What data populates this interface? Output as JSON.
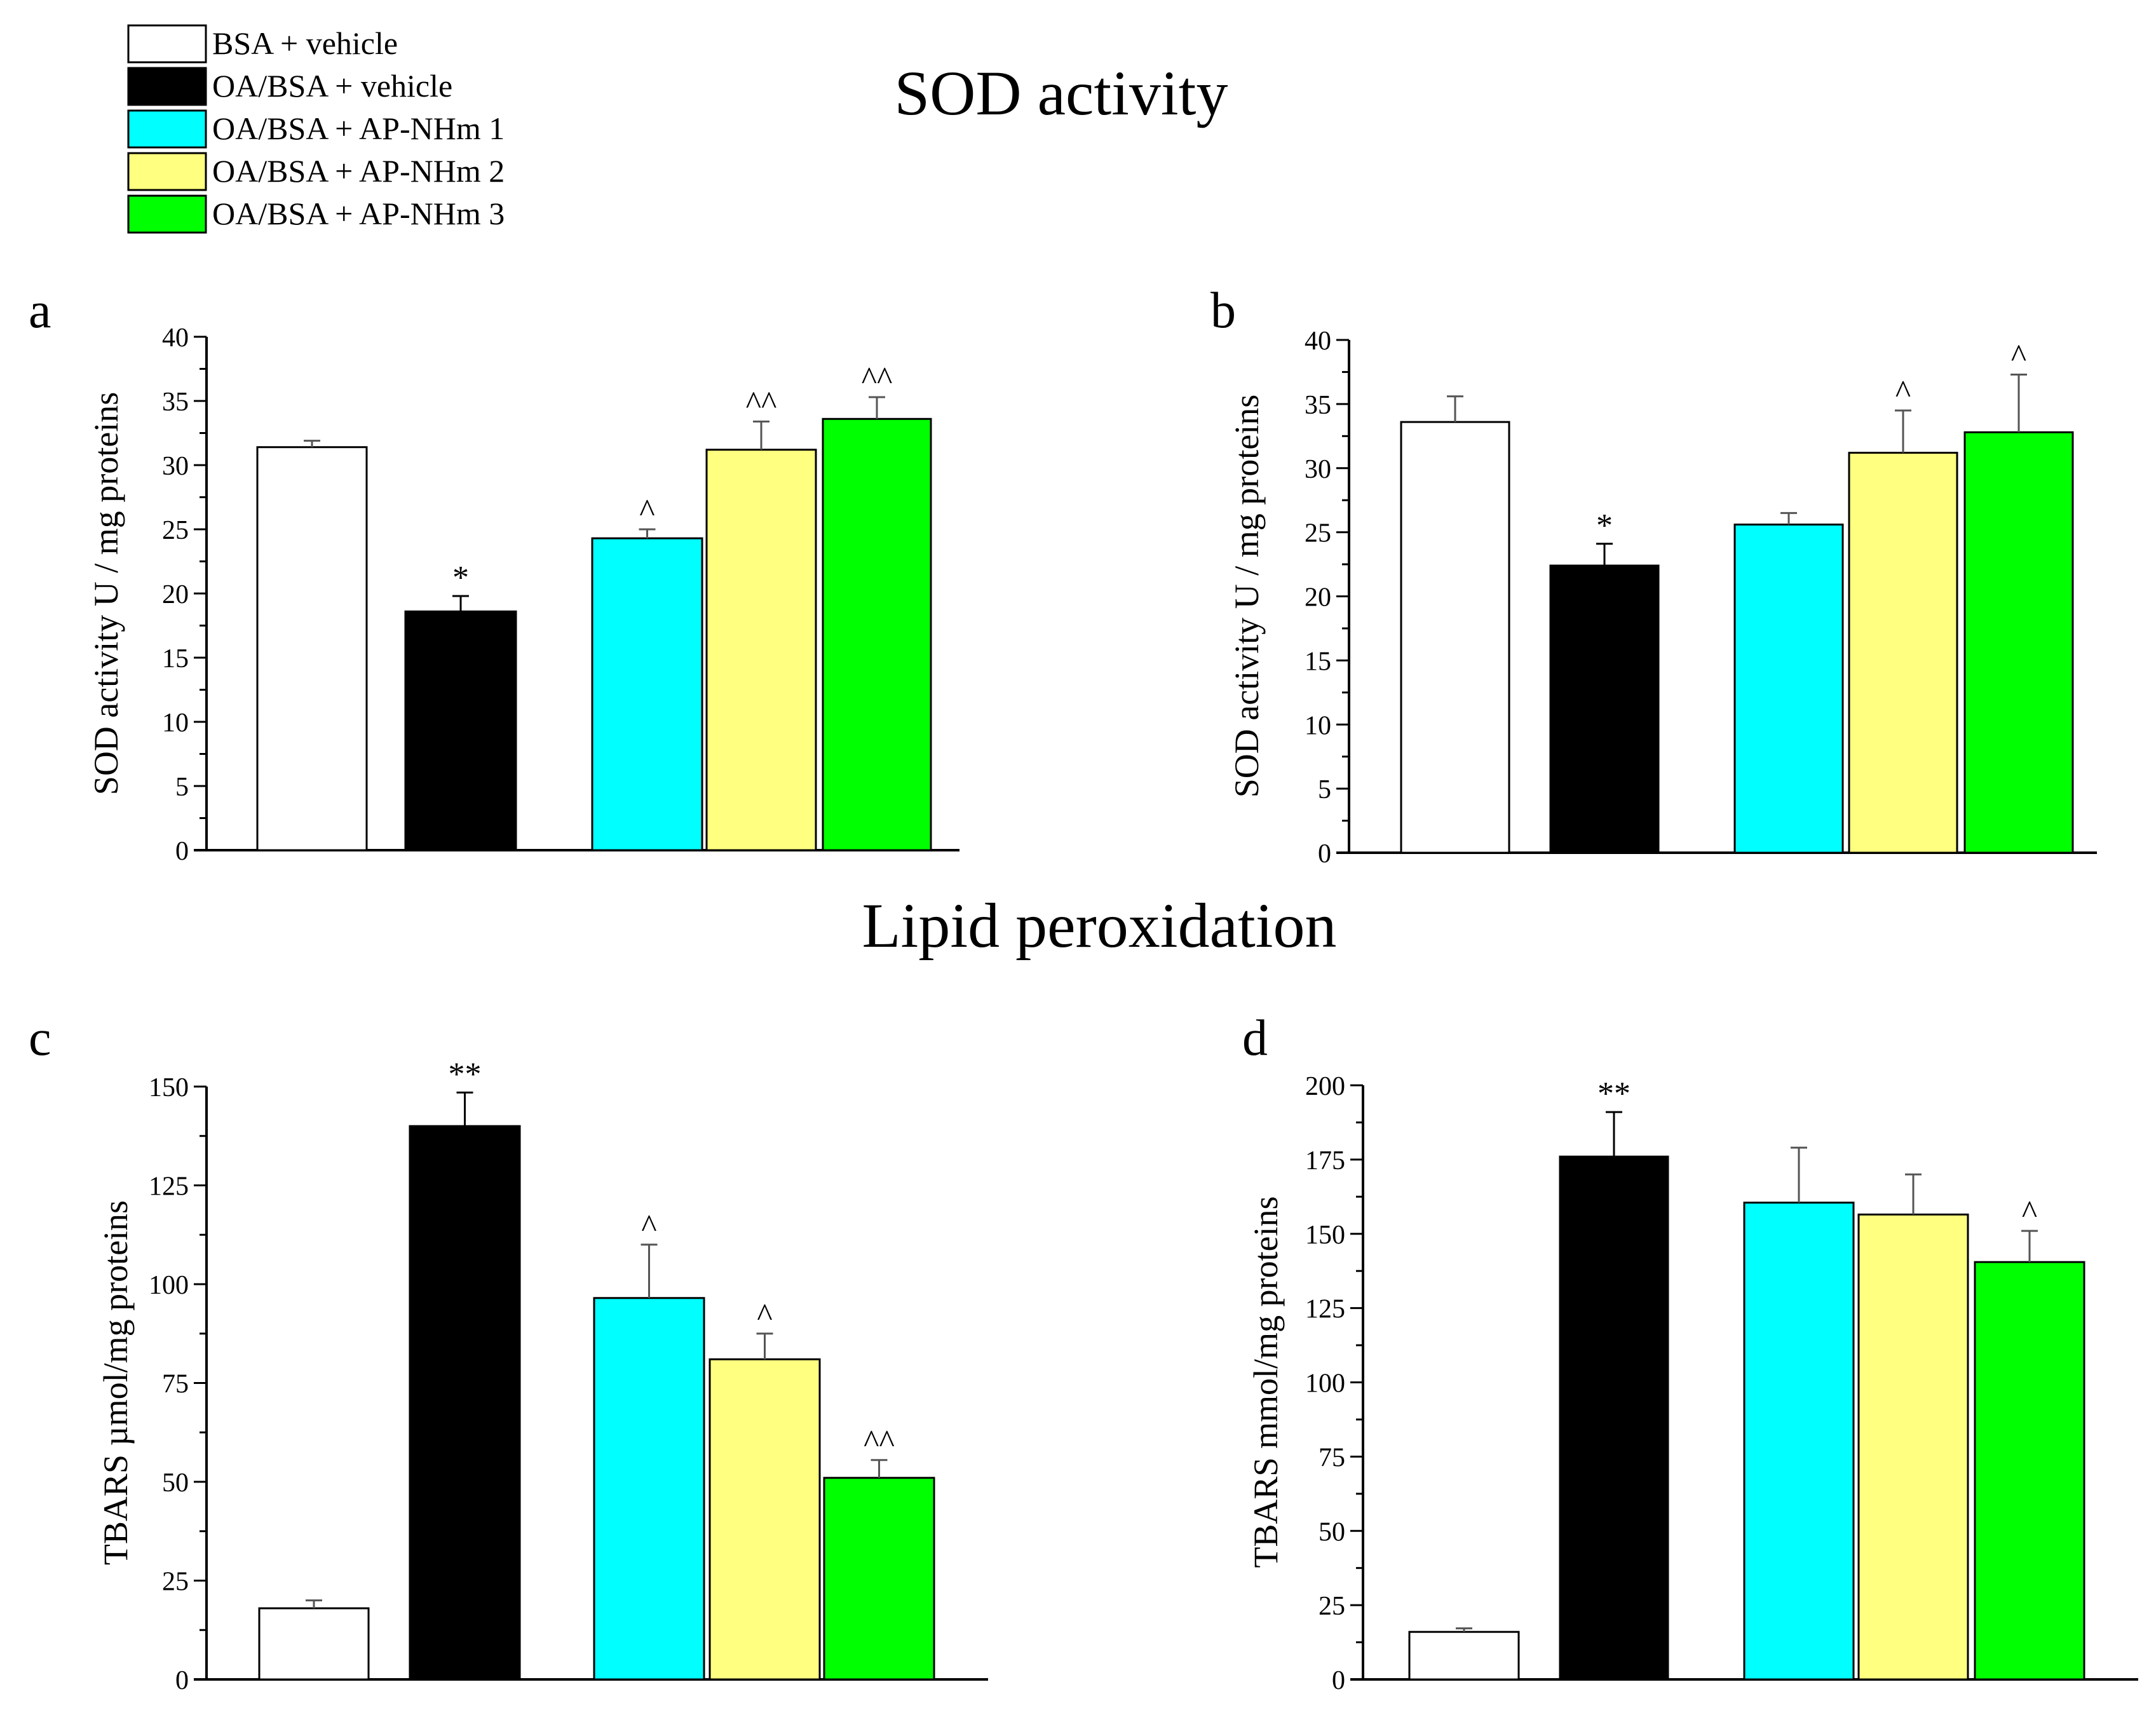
{
  "figure": {
    "section_titles": [
      "SOD activity",
      "Lipid peroxidation"
    ]
  },
  "legend": {
    "items": [
      {
        "label": "BSA + vehicle",
        "color": "#ffffff"
      },
      {
        "label": "OA/BSA + vehicle",
        "color": "#000000"
      },
      {
        "label": "OA/BSA + AP-NHm 1",
        "color": "#00ffff"
      },
      {
        "label": "OA/BSA + AP-NHm 2",
        "color": "#ffff80"
      },
      {
        "label": "OA/BSA + AP-NHm 3",
        "color": "#00ff00"
      }
    ]
  },
  "chart_data": [
    {
      "panel": "a",
      "type": "bar",
      "ylabel": "SOD activity U / mg proteins",
      "ylim": [
        0,
        40
      ],
      "yticks": [
        0,
        5,
        10,
        15,
        20,
        25,
        30,
        35,
        40
      ],
      "categories": [
        "BSA + vehicle",
        "OA/BSA + vehicle",
        "OA/BSA + AP-NHm 1",
        "OA/BSA + AP-NHm 2",
        "OA/BSA + AP-NHm 3"
      ],
      "values": [
        31.4,
        18.6,
        24.3,
        31.2,
        33.6
      ],
      "errors": [
        0.5,
        1.2,
        0.7,
        2.2,
        1.7
      ],
      "annotations": [
        "",
        "*",
        "^",
        "^^",
        "^^"
      ],
      "colors": [
        "#ffffff",
        "#000000",
        "#00ffff",
        "#ffff80",
        "#00ff00"
      ]
    },
    {
      "panel": "b",
      "type": "bar",
      "ylabel": "SOD activity U / mg proteins",
      "ylim": [
        0,
        40
      ],
      "yticks": [
        0,
        5,
        10,
        15,
        20,
        25,
        30,
        35,
        40
      ],
      "categories": [
        "BSA + vehicle",
        "OA/BSA + vehicle",
        "OA/BSA + AP-NHm 1",
        "OA/BSA + AP-NHm 2",
        "OA/BSA + AP-NHm 3"
      ],
      "values": [
        33.6,
        22.4,
        25.6,
        31.2,
        32.8
      ],
      "errors": [
        2.0,
        1.7,
        0.9,
        3.3,
        4.5
      ],
      "annotations": [
        "",
        "*",
        "",
        "^",
        "^"
      ],
      "colors": [
        "#ffffff",
        "#000000",
        "#00ffff",
        "#ffff80",
        "#00ff00"
      ]
    },
    {
      "panel": "c",
      "type": "bar",
      "ylabel": "TBARS µmol/mg proteins",
      "ylim": [
        0,
        150
      ],
      "yticks": [
        0,
        25,
        50,
        75,
        100,
        125,
        150
      ],
      "categories": [
        "BSA + vehicle",
        "OA/BSA + vehicle",
        "OA/BSA + AP-NHm 1",
        "OA/BSA + AP-NHm 2",
        "OA/BSA + AP-NHm 3"
      ],
      "values": [
        18,
        140,
        96.5,
        81,
        51
      ],
      "errors": [
        2,
        8.5,
        13.5,
        6.5,
        4.5
      ],
      "annotations": [
        "",
        "**",
        "^",
        "^",
        "^^"
      ],
      "colors": [
        "#ffffff",
        "#000000",
        "#00ffff",
        "#ffff80",
        "#00ff00"
      ]
    },
    {
      "panel": "d",
      "type": "bar",
      "ylabel": "TBARS mmol/mg proteins",
      "ylim": [
        0,
        200
      ],
      "yticks": [
        0,
        25,
        50,
        75,
        100,
        125,
        150,
        175,
        200
      ],
      "categories": [
        "BSA + vehicle",
        "OA/BSA + vehicle",
        "OA/BSA + AP-NHm 1",
        "OA/BSA + AP-NHm 2",
        "OA/BSA + AP-NHm 3"
      ],
      "values": [
        16,
        176,
        160.5,
        156.5,
        140.5
      ],
      "errors": [
        1.2,
        15,
        18.5,
        13.5,
        10.5
      ],
      "annotations": [
        "",
        "**",
        "",
        "",
        "^"
      ],
      "colors": [
        "#ffffff",
        "#000000",
        "#00ffff",
        "#ffff80",
        "#00ff00"
      ]
    }
  ]
}
